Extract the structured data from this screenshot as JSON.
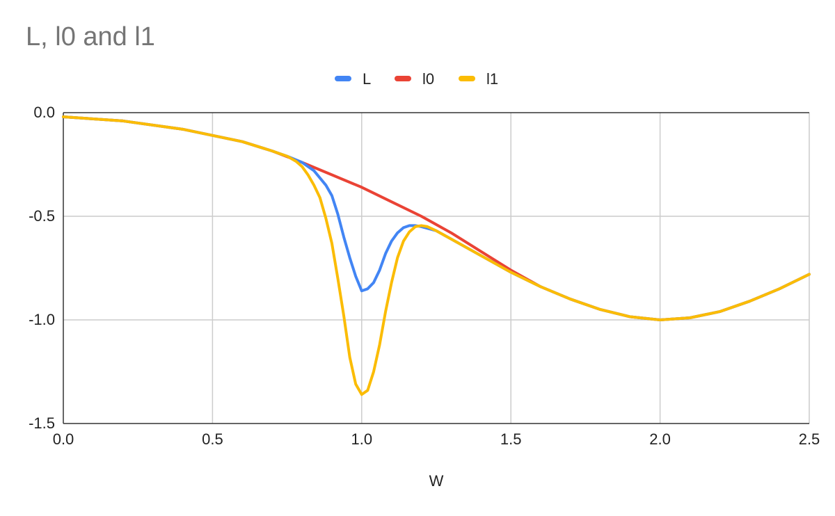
{
  "chart_data": {
    "type": "line",
    "title": "L, l0 and l1",
    "xlabel": "W",
    "ylabel": "",
    "xlim": [
      0,
      2.5
    ],
    "ylim": [
      -1.5,
      0
    ],
    "x_ticks": [
      "0.0",
      "0.5",
      "1.0",
      "1.5",
      "2.0",
      "2.5"
    ],
    "y_ticks": [
      "0.0",
      "-0.5",
      "-1.0",
      "-1.5"
    ],
    "grid": true,
    "legend_position": "top-center",
    "series": [
      {
        "name": "L",
        "color": "#4285f4",
        "points": [
          [
            0.0,
            -0.02
          ],
          [
            0.2,
            -0.04
          ],
          [
            0.4,
            -0.08
          ],
          [
            0.6,
            -0.14
          ],
          [
            0.7,
            -0.185
          ],
          [
            0.75,
            -0.21
          ],
          [
            0.8,
            -0.24
          ],
          [
            0.84,
            -0.28
          ],
          [
            0.88,
            -0.35
          ],
          [
            0.9,
            -0.4
          ],
          [
            0.92,
            -0.49
          ],
          [
            0.94,
            -0.6
          ],
          [
            0.96,
            -0.7
          ],
          [
            0.98,
            -0.79
          ],
          [
            1.0,
            -0.86
          ],
          [
            1.02,
            -0.85
          ],
          [
            1.04,
            -0.82
          ],
          [
            1.06,
            -0.76
          ],
          [
            1.08,
            -0.68
          ],
          [
            1.1,
            -0.62
          ],
          [
            1.12,
            -0.58
          ],
          [
            1.14,
            -0.555
          ],
          [
            1.16,
            -0.545
          ],
          [
            1.18,
            -0.545
          ],
          [
            1.2,
            -0.55
          ],
          [
            1.25,
            -0.57
          ],
          [
            1.3,
            -0.61
          ],
          [
            1.4,
            -0.69
          ],
          [
            1.5,
            -0.77
          ],
          [
            1.6,
            -0.84
          ],
          [
            1.7,
            -0.9
          ],
          [
            1.8,
            -0.95
          ],
          [
            1.9,
            -0.985
          ],
          [
            2.0,
            -1.0
          ],
          [
            2.1,
            -0.99
          ],
          [
            2.2,
            -0.96
          ],
          [
            2.3,
            -0.91
          ],
          [
            2.4,
            -0.85
          ],
          [
            2.5,
            -0.78
          ]
        ]
      },
      {
        "name": "l0",
        "color": "#ea4335",
        "points": [
          [
            0.0,
            -0.02
          ],
          [
            0.2,
            -0.04
          ],
          [
            0.4,
            -0.08
          ],
          [
            0.6,
            -0.14
          ],
          [
            0.7,
            -0.185
          ],
          [
            0.8,
            -0.24
          ],
          [
            0.9,
            -0.3
          ],
          [
            1.0,
            -0.36
          ],
          [
            1.1,
            -0.43
          ],
          [
            1.2,
            -0.5
          ],
          [
            1.3,
            -0.58
          ],
          [
            1.4,
            -0.67
          ],
          [
            1.5,
            -0.76
          ],
          [
            1.6,
            -0.84
          ],
          [
            1.7,
            -0.9
          ],
          [
            1.8,
            -0.95
          ],
          [
            1.9,
            -0.985
          ],
          [
            2.0,
            -1.0
          ],
          [
            2.1,
            -0.99
          ],
          [
            2.2,
            -0.96
          ],
          [
            2.3,
            -0.91
          ],
          [
            2.4,
            -0.85
          ],
          [
            2.5,
            -0.78
          ]
        ]
      },
      {
        "name": "l1",
        "color": "#fbbc04",
        "points": [
          [
            0.0,
            -0.02
          ],
          [
            0.2,
            -0.04
          ],
          [
            0.4,
            -0.08
          ],
          [
            0.6,
            -0.14
          ],
          [
            0.7,
            -0.185
          ],
          [
            0.75,
            -0.21
          ],
          [
            0.78,
            -0.235
          ],
          [
            0.8,
            -0.26
          ],
          [
            0.82,
            -0.3
          ],
          [
            0.84,
            -0.35
          ],
          [
            0.86,
            -0.41
          ],
          [
            0.88,
            -0.51
          ],
          [
            0.9,
            -0.63
          ],
          [
            0.92,
            -0.8
          ],
          [
            0.94,
            -0.98
          ],
          [
            0.96,
            -1.18
          ],
          [
            0.98,
            -1.31
          ],
          [
            1.0,
            -1.36
          ],
          [
            1.02,
            -1.34
          ],
          [
            1.04,
            -1.25
          ],
          [
            1.06,
            -1.12
          ],
          [
            1.08,
            -0.96
          ],
          [
            1.1,
            -0.82
          ],
          [
            1.12,
            -0.7
          ],
          [
            1.14,
            -0.62
          ],
          [
            1.16,
            -0.575
          ],
          [
            1.18,
            -0.55
          ],
          [
            1.2,
            -0.545
          ],
          [
            1.22,
            -0.55
          ],
          [
            1.25,
            -0.57
          ],
          [
            1.3,
            -0.61
          ],
          [
            1.4,
            -0.69
          ],
          [
            1.5,
            -0.77
          ],
          [
            1.6,
            -0.84
          ],
          [
            1.7,
            -0.9
          ],
          [
            1.8,
            -0.95
          ],
          [
            1.9,
            -0.985
          ],
          [
            2.0,
            -1.0
          ],
          [
            2.1,
            -0.99
          ],
          [
            2.2,
            -0.96
          ],
          [
            2.3,
            -0.91
          ],
          [
            2.4,
            -0.85
          ],
          [
            2.5,
            -0.78
          ]
        ]
      }
    ]
  }
}
